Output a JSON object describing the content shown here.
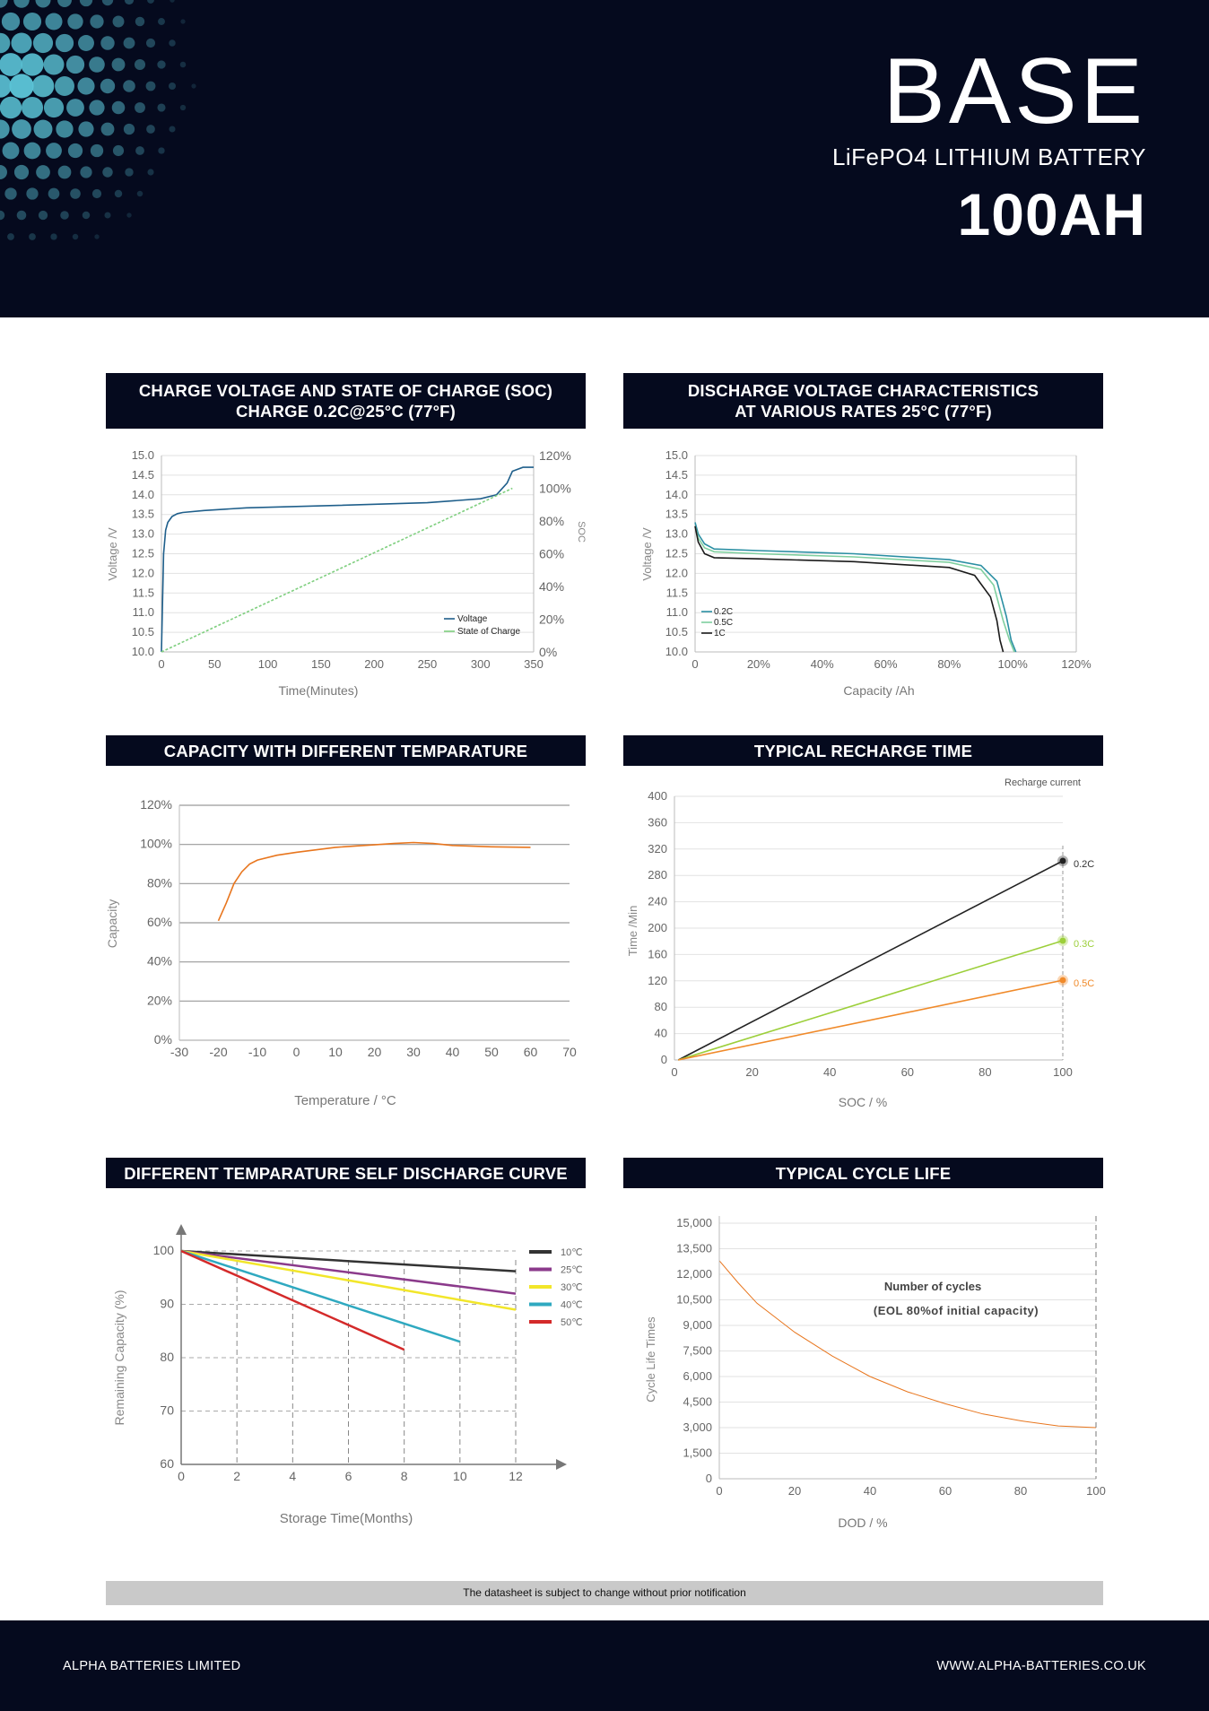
{
  "header": {
    "brand": "BASE",
    "subtitle": "LiFePO4 LITHIUM BATTERY",
    "capacity": "100AH",
    "colors": {
      "background": "#050a1e",
      "dots": "#5bc3d6"
    }
  },
  "panels": {
    "charge_soc": {
      "title_line1": "CHARGE VOLTAGE AND STATE OF CHARGE (SOC)",
      "title_line2": "CHARGE 0.2C@25°C (77°F)"
    },
    "discharge": {
      "title_line1": "DISCHARGE VOLTAGE CHARACTERISTICS",
      "title_line2": "AT VARIOUS RATES 25°C (77°F)"
    },
    "capacity_temp": {
      "title": "CAPACITY WITH DIFFERENT TEMPARATURE"
    },
    "recharge": {
      "title": "TYPICAL RECHARGE TIME"
    },
    "self_discharge": {
      "title": "DIFFERENT TEMPARATURE SELF DISCHARGE CURVE"
    },
    "cycle_life": {
      "title": "TYPICAL CYCLE LIFE"
    }
  },
  "chart_data": [
    {
      "id": "charge_soc",
      "type": "line",
      "xlabel": "Time(Minutes)",
      "ylabel": "Voltage /V",
      "y2label": "SOC",
      "x_ticks": [
        "0",
        "50",
        "100",
        "150",
        "200",
        "250",
        "300",
        "350"
      ],
      "y_ticks": [
        "10.0",
        "10.5",
        "11.0",
        "11.5",
        "12.0",
        "12.5",
        "13.0",
        "13.5",
        "14.0",
        "14.5",
        "15.0"
      ],
      "y2_ticks": [
        "0%",
        "20%",
        "40%",
        "60%",
        "80%",
        "100%",
        "120%"
      ],
      "xlim": [
        0,
        350
      ],
      "ylim": [
        10,
        15
      ],
      "y2lim": [
        0,
        120
      ],
      "series": [
        {
          "name": "Voltage",
          "color": "#1f5f8b",
          "x": [
            0,
            2,
            4,
            6,
            10,
            15,
            20,
            40,
            80,
            150,
            250,
            300,
            315,
            325,
            330,
            340,
            350
          ],
          "y": [
            10.0,
            12.5,
            13.1,
            13.3,
            13.45,
            13.52,
            13.55,
            13.6,
            13.67,
            13.72,
            13.8,
            13.9,
            14.0,
            14.3,
            14.6,
            14.7,
            14.7
          ]
        },
        {
          "name": "State of Charge",
          "color": "#7fcf7f",
          "x": [
            0,
            330
          ],
          "y": [
            0,
            100
          ],
          "axis": "y2"
        }
      ]
    },
    {
      "id": "discharge",
      "type": "line",
      "xlabel": "Capacity /Ah",
      "ylabel": "Voltage /V",
      "x_ticks": [
        "0",
        "20%",
        "40%",
        "60%",
        "80%",
        "100%",
        "120%"
      ],
      "y_ticks": [
        "10.0",
        "10.5",
        "11.0",
        "11.5",
        "12.0",
        "12.5",
        "13.0",
        "13.5",
        "14.0",
        "14.5",
        "15.0"
      ],
      "xlim": [
        0,
        120
      ],
      "ylim": [
        10,
        15
      ],
      "series": [
        {
          "name": "0.2C",
          "color": "#2b8fa3",
          "x": [
            0,
            1,
            3,
            6,
            20,
            50,
            80,
            90,
            95,
            98,
            99.5,
            101
          ],
          "y": [
            13.3,
            13.0,
            12.75,
            12.62,
            12.58,
            12.5,
            12.35,
            12.2,
            11.8,
            10.9,
            10.3,
            10.0
          ]
        },
        {
          "name": "0.5C",
          "color": "#7fcf9f",
          "x": [
            0,
            1,
            3,
            6,
            20,
            50,
            80,
            90,
            94,
            97,
            99,
            100.5
          ],
          "y": [
            13.2,
            12.9,
            12.65,
            12.55,
            12.5,
            12.42,
            12.28,
            12.1,
            11.7,
            10.8,
            10.3,
            10.0
          ]
        },
        {
          "name": "1C",
          "color": "#1a1a1a",
          "x": [
            0,
            1,
            3,
            6,
            20,
            50,
            80,
            88,
            93,
            95,
            96,
            97
          ],
          "y": [
            13.2,
            12.8,
            12.5,
            12.4,
            12.37,
            12.3,
            12.15,
            11.95,
            11.4,
            10.8,
            10.3,
            10.0
          ]
        }
      ]
    },
    {
      "id": "capacity_temp",
      "type": "line",
      "xlabel": "Temperature / °C",
      "ylabel": "Capacity",
      "x_ticks": [
        "-30",
        "-20",
        "-10",
        "0",
        "10",
        "20",
        "30",
        "40",
        "50",
        "60",
        "70"
      ],
      "y_ticks": [
        "0%",
        "20%",
        "40%",
        "60%",
        "80%",
        "100%",
        "120%"
      ],
      "xlim": [
        -30,
        70
      ],
      "ylim": [
        0,
        120
      ],
      "series": [
        {
          "name": "Capacity",
          "color": "#e8761e",
          "x": [
            -20,
            -18,
            -16,
            -14,
            -12,
            -10,
            -5,
            0,
            10,
            20,
            25,
            30,
            35,
            40,
            50,
            60
          ],
          "y": [
            61,
            70,
            80,
            86,
            90,
            92,
            94.5,
            96,
            98.5,
            99.8,
            100.5,
            101,
            100.5,
            99.5,
            98.8,
            98.5
          ]
        }
      ]
    },
    {
      "id": "recharge",
      "type": "line",
      "xlabel": "SOC / %",
      "ylabel": "Time /Min",
      "legend_title": "Recharge current",
      "x_ticks": [
        "0",
        "20",
        "40",
        "60",
        "80",
        "100"
      ],
      "y_ticks": [
        "0",
        "40",
        "80",
        "120",
        "160",
        "200",
        "240",
        "280",
        "320",
        "360",
        "400"
      ],
      "xlim": [
        0,
        100
      ],
      "ylim": [
        0,
        400
      ],
      "series": [
        {
          "name": "0.2C",
          "color": "#222222",
          "x": [
            1,
            100
          ],
          "y": [
            0,
            302
          ]
        },
        {
          "name": "0.3C",
          "color": "#9ccf3a",
          "x": [
            1,
            100
          ],
          "y": [
            0,
            181
          ]
        },
        {
          "name": "0.5C",
          "color": "#f08a2a",
          "x": [
            1,
            100
          ],
          "y": [
            0,
            121
          ]
        }
      ]
    },
    {
      "id": "self_discharge",
      "type": "line",
      "xlabel": "Storage Time(Months)",
      "ylabel": "Remaining Capacity (%)",
      "x_ticks": [
        "0",
        "2",
        "4",
        "6",
        "8",
        "10",
        "12"
      ],
      "y_ticks": [
        "60",
        "70",
        "80",
        "90",
        "100"
      ],
      "xlim": [
        0,
        12
      ],
      "ylim": [
        60,
        100
      ],
      "series": [
        {
          "name": "10℃",
          "color": "#333333",
          "x": [
            0,
            12
          ],
          "y": [
            100,
            96.2
          ]
        },
        {
          "name": "25℃",
          "color": "#8b3a8b",
          "x": [
            0,
            12
          ],
          "y": [
            100,
            92
          ]
        },
        {
          "name": "30℃",
          "color": "#f2e62a",
          "x": [
            0,
            12
          ],
          "y": [
            100,
            89
          ]
        },
        {
          "name": "40℃",
          "color": "#2fa9c0",
          "x": [
            0,
            10
          ],
          "y": [
            100,
            83
          ]
        },
        {
          "name": "50℃",
          "color": "#d42a2a",
          "x": [
            0,
            8
          ],
          "y": [
            100,
            81.5
          ]
        }
      ]
    },
    {
      "id": "cycle_life",
      "type": "line",
      "xlabel": "DOD / %",
      "ylabel": "Cycle Life Times",
      "annotation_line1": "Number of cycles",
      "annotation_line2": "(EOL 80%of initial capacity)",
      "x_ticks": [
        "0",
        "20",
        "40",
        "60",
        "80",
        "100"
      ],
      "y_ticks": [
        "0",
        "1,500",
        "3,000",
        "4,500",
        "6,000",
        "7,500",
        "9,000",
        "10,500",
        "12,000",
        "13,500",
        "15,000"
      ],
      "xlim": [
        0,
        100
      ],
      "ylim": [
        0,
        15000
      ],
      "series": [
        {
          "name": "Cycle life",
          "color": "#e8761e",
          "x": [
            0,
            5,
            10,
            20,
            30,
            40,
            50,
            60,
            70,
            80,
            90,
            100
          ],
          "y": [
            12800,
            11500,
            10300,
            8600,
            7200,
            6000,
            5100,
            4400,
            3800,
            3400,
            3100,
            3000
          ]
        }
      ]
    }
  ],
  "notice": "The datasheet is subject to change without prior notification",
  "footer": {
    "company": "ALPHA BATTERIES LIMITED",
    "website": "WWW.ALPHA-BATTERIES.CO.UK"
  }
}
